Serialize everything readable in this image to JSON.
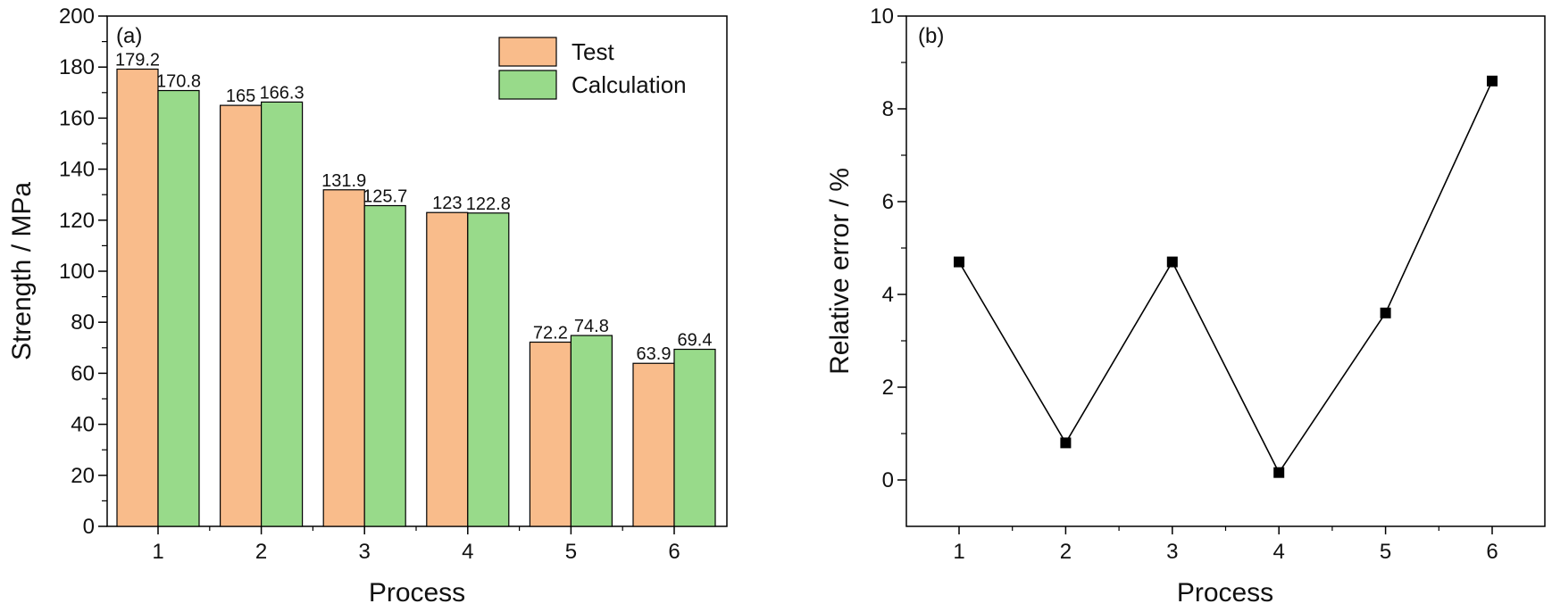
{
  "chart_data": [
    {
      "panel_label": "(a)",
      "type": "bar",
      "categories": [
        "1",
        "2",
        "3",
        "4",
        "5",
        "6"
      ],
      "series": [
        {
          "name": "Test",
          "values": [
            179.2,
            165,
            131.9,
            123,
            72.2,
            63.9
          ],
          "labels": [
            "179.2",
            "165",
            "131.9",
            "123",
            "72.2",
            "63.9"
          ],
          "color": "#F9BC8B"
        },
        {
          "name": "Calculation",
          "values": [
            170.8,
            166.3,
            125.7,
            122.8,
            74.8,
            69.4
          ],
          "labels": [
            "170.8",
            "166.3",
            "125.7",
            "122.8",
            "74.8",
            "69.4"
          ],
          "color": "#98DA8A"
        }
      ],
      "xlabel": "Process",
      "ylabel": "Strength / MPa",
      "ylim": [
        0,
        200
      ],
      "yticks": [
        "0",
        "20",
        "40",
        "60",
        "80",
        "100",
        "120",
        "140",
        "160",
        "180",
        "200"
      ],
      "legend_position": "top-right",
      "grid": false
    },
    {
      "panel_label": "(b)",
      "type": "line",
      "x": [
        "1",
        "2",
        "3",
        "4",
        "5",
        "6"
      ],
      "series": [
        {
          "values": [
            4.7,
            0.8,
            4.7,
            0.16,
            3.6,
            8.6
          ],
          "color": "#000000",
          "marker": "square"
        }
      ],
      "xlabel": "Process",
      "ylabel": "Relative error / %",
      "ylim": [
        -1,
        10
      ],
      "yticks": [
        "0",
        "2",
        "4",
        "6",
        "8",
        "10"
      ],
      "grid": false
    }
  ]
}
